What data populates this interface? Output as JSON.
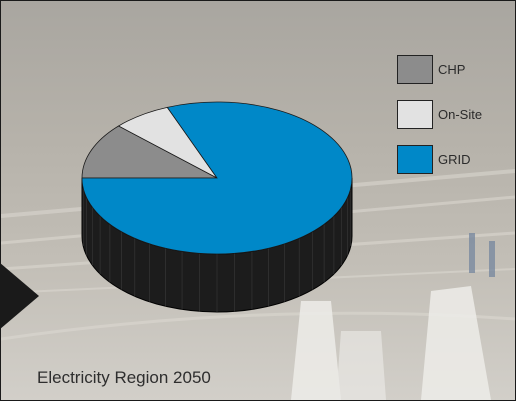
{
  "chart_data": {
    "type": "pie",
    "title": "Electricity Region 2050",
    "slices": [
      {
        "label": "CHP",
        "value": 12,
        "color": "#8c8c8c"
      },
      {
        "label": "On-Site",
        "value": 7,
        "color": "#e2e2e2"
      },
      {
        "label": "GRID",
        "value": 81,
        "color": "#0088c8"
      }
    ],
    "legend": {
      "placement": "right",
      "entries": [
        {
          "label": "CHP",
          "color": "#8c8c8c"
        },
        {
          "label": "On-Site",
          "color": "#e2e2e2"
        },
        {
          "label": "GRID",
          "color": "#0088c8"
        }
      ]
    },
    "style": "3d",
    "side_color": "#1c1c1c"
  }
}
